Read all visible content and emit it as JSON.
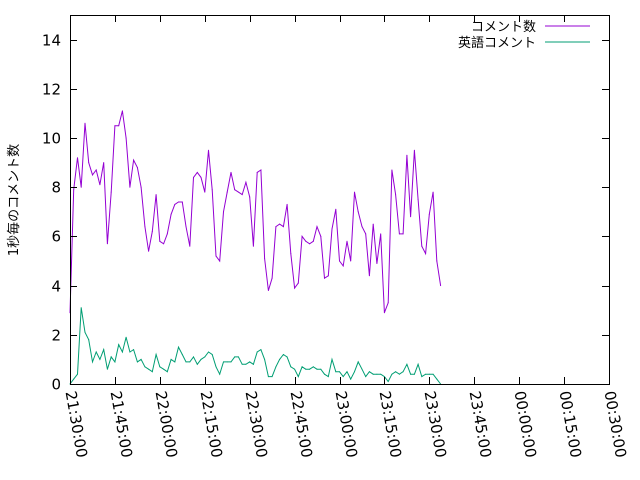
{
  "chart_data": {
    "type": "line",
    "title": "",
    "xlabel": "",
    "ylabel": "1秒毎のコメント数",
    "ylim": [
      0,
      15
    ],
    "y_ticks": [
      0,
      2,
      4,
      6,
      8,
      10,
      12,
      14
    ],
    "y_tick_labels": [
      "0",
      "2",
      "4",
      "6",
      "8",
      "10",
      "12",
      "14"
    ],
    "x_range_seconds": [
      77400,
      88200
    ],
    "x_ticks": [
      {
        "label": "21:30:00",
        "seconds": 77400
      },
      {
        "label": "21:45:00",
        "seconds": 78300
      },
      {
        "label": "22:00:00",
        "seconds": 79200
      },
      {
        "label": "22:15:00",
        "seconds": 80100
      },
      {
        "label": "22:30:00",
        "seconds": 81000
      },
      {
        "label": "22:45:00",
        "seconds": 81900
      },
      {
        "label": "23:00:00",
        "seconds": 82800
      },
      {
        "label": "23:15:00",
        "seconds": 83700
      },
      {
        "label": "23:30:00",
        "seconds": 84600
      },
      {
        "label": "23:45:00",
        "seconds": 85500
      },
      {
        "label": "00:00:00",
        "seconds": 86400
      },
      {
        "label": "00:15:00",
        "seconds": 87300
      },
      {
        "label": "00:30:00",
        "seconds": 88200
      }
    ],
    "x_start_seconds": 77400,
    "x_step_seconds": 75,
    "grid": false,
    "legend_position": "top-right",
    "series": [
      {
        "name": "コメント数",
        "color": "#9400d3",
        "values": [
          2.9,
          7.9,
          9.2,
          8.0,
          10.6,
          9.0,
          8.5,
          8.7,
          8.1,
          9.0,
          5.7,
          7.8,
          10.5,
          10.5,
          11.1,
          10.0,
          8.0,
          9.1,
          8.8,
          8.0,
          6.4,
          5.4,
          6.2,
          7.7,
          5.8,
          5.7,
          6.1,
          6.9,
          7.3,
          7.4,
          7.4,
          6.4,
          5.6,
          8.4,
          8.6,
          8.4,
          7.8,
          9.5,
          7.9,
          5.2,
          5.0,
          7.0,
          7.8,
          8.6,
          7.9,
          7.8,
          7.7,
          8.2,
          7.6,
          5.6,
          8.6,
          8.7,
          5.1,
          3.8,
          4.3,
          6.4,
          6.5,
          6.4,
          7.3,
          5.3,
          3.9,
          4.1,
          6.0,
          5.8,
          5.7,
          5.8,
          6.4,
          6.0,
          4.3,
          4.4,
          6.3,
          7.1,
          5.0,
          4.8,
          5.8,
          5.0,
          7.8,
          7.0,
          6.4,
          6.1,
          4.4,
          6.5,
          4.9,
          6.1,
          2.9,
          3.3,
          8.7,
          7.7,
          6.1,
          6.1,
          9.3,
          6.8,
          9.5,
          7.5,
          5.6,
          5.3,
          6.9,
          7.8,
          5.0,
          4.0
        ]
      },
      {
        "name": "英語コメント",
        "color": "#009e73",
        "values": [
          0,
          0.2,
          0.4,
          3.1,
          2.1,
          1.8,
          0.9,
          1.3,
          1.0,
          1.4,
          0.6,
          1.1,
          0.9,
          1.6,
          1.3,
          1.9,
          1.3,
          1.4,
          0.9,
          1.0,
          0.7,
          0.6,
          0.5,
          1.2,
          0.7,
          0.6,
          0.5,
          1.0,
          0.9,
          1.5,
          1.2,
          0.9,
          0.9,
          1.1,
          0.8,
          1.0,
          1.1,
          1.3,
          1.2,
          0.7,
          0.4,
          0.9,
          0.9,
          0.9,
          1.1,
          1.1,
          0.8,
          0.8,
          0.9,
          0.8,
          1.3,
          1.4,
          1.0,
          0.3,
          0.3,
          0.7,
          1.0,
          1.2,
          1.1,
          0.7,
          0.6,
          0.3,
          0.7,
          0.6,
          0.6,
          0.7,
          0.6,
          0.6,
          0.4,
          0.3,
          1.0,
          0.5,
          0.5,
          0.3,
          0.5,
          0.2,
          0.5,
          0.9,
          0.6,
          0.3,
          0.5,
          0.4,
          0.4,
          0.4,
          0.3,
          0.1,
          0.4,
          0.5,
          0.4,
          0.5,
          0.8,
          0.4,
          0.4,
          0.8,
          0.3,
          0.4,
          0.4,
          0.4,
          0.2,
          0
        ]
      }
    ]
  }
}
